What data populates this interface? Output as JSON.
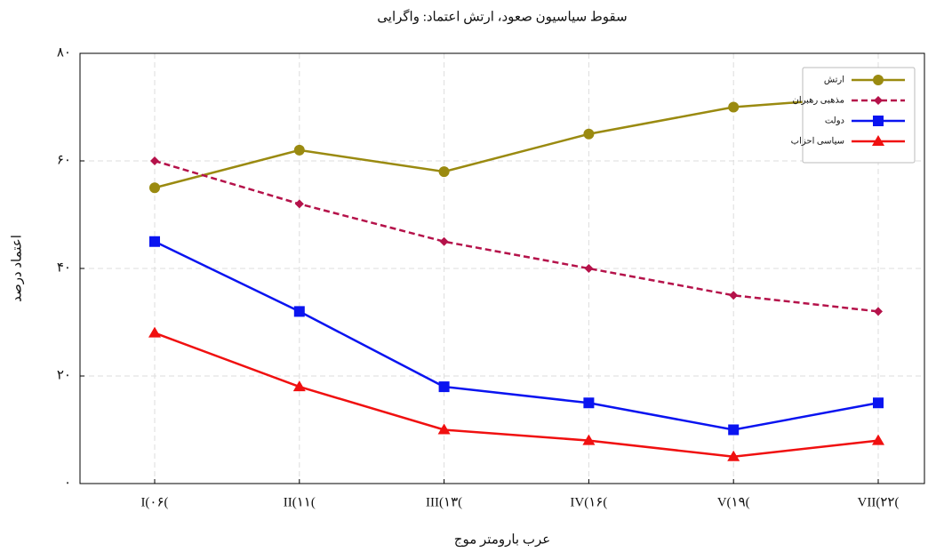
{
  "chart_data": {
    "type": "line",
    "title": "سقوط سیاسیون صعود، ارتش اعتماد: واگرایی",
    "x_label": "عرب بارومتر موج",
    "y_label": "اعتماد درصد",
    "categories": [
      "I(۰۶(",
      "II(۱۱(",
      "III(۱۳(",
      "IV(۱۶(",
      "V(۱۹(",
      "VII(۲۲("
    ],
    "ylim": [
      0,
      80
    ],
    "yticks": [
      {
        "value": 0,
        "label": "۰"
      },
      {
        "value": 20,
        "label": "۲۰"
      },
      {
        "value": 40,
        "label": "۴۰"
      },
      {
        "value": 60,
        "label": "۶۰"
      },
      {
        "value": 80,
        "label": "۸۰"
      }
    ],
    "grid": true,
    "legend": "upper right",
    "series": [
      {
        "name": "ارتش",
        "color": "#9a8a10",
        "marker": "circle",
        "linestyle": "solid",
        "values": [
          55,
          62,
          58,
          65,
          70,
          72
        ]
      },
      {
        "name": "مذهبی رهبران",
        "color": "#b5124a",
        "marker": "diamond",
        "linestyle": "dashed",
        "values": [
          60,
          52,
          45,
          40,
          35,
          32
        ]
      },
      {
        "name": "دولت",
        "color": "#0a14f0",
        "marker": "square",
        "linestyle": "solid",
        "values": [
          45,
          32,
          18,
          15,
          10,
          15
        ]
      },
      {
        "name": "سیاسی احزاب",
        "color": "#f01010",
        "marker": "triangle",
        "linestyle": "solid",
        "values": [
          28,
          18,
          10,
          8,
          5,
          8
        ]
      }
    ]
  }
}
